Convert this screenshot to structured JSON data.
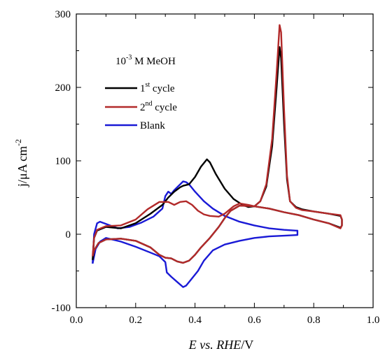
{
  "chart_data": {
    "type": "line",
    "x_axis": {
      "label_parts": [
        "E",
        " vs. ",
        "RHE",
        "/V"
      ],
      "range": [
        0.0,
        1.0
      ],
      "ticks": [
        0.0,
        0.2,
        0.4,
        0.6,
        0.8,
        1.0
      ],
      "tick_labels": [
        "0.0",
        "0.2",
        "0.4",
        "0.6",
        "0.8",
        "1.0"
      ]
    },
    "y_axis": {
      "label_main": "j/μA cm",
      "label_sup": "-2",
      "range": [
        -100,
        300
      ],
      "ticks": [
        -100,
        0,
        100,
        200,
        300
      ],
      "tick_labels": [
        "-100",
        "0",
        "100",
        "200",
        "300"
      ]
    },
    "annotation": {
      "base": "10",
      "sup": "-3",
      "rest": " M  MeOH"
    },
    "legend": [
      {
        "series": "cycle1",
        "base": "1",
        "sup": "st",
        "rest": " cycle"
      },
      {
        "series": "cycle2",
        "base": "2",
        "sup": "nd",
        "rest": " cycle"
      },
      {
        "series": "blank",
        "base": "Blank",
        "sup": "",
        "rest": ""
      }
    ],
    "series": [
      {
        "key": "cycle1",
        "color": "#000000",
        "points": [
          [
            0.055,
            -35
          ],
          [
            0.06,
            -5
          ],
          [
            0.07,
            5
          ],
          [
            0.1,
            10
          ],
          [
            0.15,
            8
          ],
          [
            0.2,
            15
          ],
          [
            0.25,
            28
          ],
          [
            0.29,
            40
          ],
          [
            0.31,
            50
          ],
          [
            0.33,
            58
          ],
          [
            0.35,
            64
          ],
          [
            0.36,
            66
          ],
          [
            0.38,
            68
          ],
          [
            0.4,
            78
          ],
          [
            0.42,
            92
          ],
          [
            0.44,
            102
          ],
          [
            0.45,
            98
          ],
          [
            0.47,
            82
          ],
          [
            0.5,
            62
          ],
          [
            0.53,
            48
          ],
          [
            0.56,
            40
          ],
          [
            0.58,
            37
          ],
          [
            0.6,
            38
          ],
          [
            0.62,
            45
          ],
          [
            0.64,
            65
          ],
          [
            0.66,
            120
          ],
          [
            0.675,
            200
          ],
          [
            0.685,
            255
          ],
          [
            0.69,
            240
          ],
          [
            0.7,
            150
          ],
          [
            0.71,
            75
          ],
          [
            0.72,
            45
          ],
          [
            0.74,
            37
          ],
          [
            0.76,
            34
          ],
          [
            0.8,
            31
          ],
          [
            0.85,
            28
          ],
          [
            0.89,
            25
          ],
          [
            0.895,
            20
          ],
          [
            0.895,
            12
          ],
          [
            0.89,
            9
          ],
          [
            0.85,
            15
          ],
          [
            0.8,
            20
          ],
          [
            0.75,
            26
          ],
          [
            0.7,
            30
          ],
          [
            0.65,
            35
          ],
          [
            0.6,
            38
          ],
          [
            0.55,
            39
          ],
          [
            0.52,
            32
          ],
          [
            0.5,
            22
          ],
          [
            0.48,
            10
          ],
          [
            0.45,
            -5
          ],
          [
            0.42,
            -18
          ],
          [
            0.4,
            -28
          ],
          [
            0.38,
            -36
          ],
          [
            0.36,
            -39
          ],
          [
            0.34,
            -37
          ],
          [
            0.32,
            -33
          ],
          [
            0.3,
            -32
          ],
          [
            0.28,
            -28
          ],
          [
            0.25,
            -18
          ],
          [
            0.2,
            -9
          ],
          [
            0.15,
            -6
          ],
          [
            0.1,
            -7
          ],
          [
            0.075,
            -12
          ],
          [
            0.06,
            -22
          ],
          [
            0.055,
            -35
          ]
        ]
      },
      {
        "key": "cycle2",
        "color": "#b22a2a",
        "points": [
          [
            0.055,
            -30
          ],
          [
            0.06,
            -5
          ],
          [
            0.07,
            6
          ],
          [
            0.1,
            11
          ],
          [
            0.15,
            12
          ],
          [
            0.2,
            20
          ],
          [
            0.24,
            34
          ],
          [
            0.28,
            44
          ],
          [
            0.31,
            44
          ],
          [
            0.33,
            40
          ],
          [
            0.35,
            44
          ],
          [
            0.37,
            45
          ],
          [
            0.39,
            40
          ],
          [
            0.41,
            32
          ],
          [
            0.43,
            27
          ],
          [
            0.45,
            25
          ],
          [
            0.48,
            24
          ],
          [
            0.5,
            28
          ],
          [
            0.53,
            38
          ],
          [
            0.55,
            42
          ],
          [
            0.58,
            40
          ],
          [
            0.6,
            38
          ],
          [
            0.62,
            45
          ],
          [
            0.64,
            68
          ],
          [
            0.66,
            130
          ],
          [
            0.675,
            220
          ],
          [
            0.685,
            285
          ],
          [
            0.69,
            275
          ],
          [
            0.7,
            170
          ],
          [
            0.71,
            80
          ],
          [
            0.72,
            45
          ],
          [
            0.74,
            36
          ],
          [
            0.76,
            33
          ],
          [
            0.8,
            31
          ],
          [
            0.85,
            28
          ],
          [
            0.89,
            26
          ],
          [
            0.895,
            20
          ],
          [
            0.895,
            12
          ],
          [
            0.89,
            8
          ],
          [
            0.85,
            15
          ],
          [
            0.8,
            20
          ],
          [
            0.75,
            26
          ],
          [
            0.7,
            30
          ],
          [
            0.65,
            35
          ],
          [
            0.6,
            38
          ],
          [
            0.55,
            39
          ],
          [
            0.52,
            32
          ],
          [
            0.5,
            22
          ],
          [
            0.48,
            10
          ],
          [
            0.45,
            -5
          ],
          [
            0.42,
            -18
          ],
          [
            0.4,
            -28
          ],
          [
            0.38,
            -36
          ],
          [
            0.36,
            -39
          ],
          [
            0.34,
            -37
          ],
          [
            0.32,
            -33
          ],
          [
            0.3,
            -32
          ],
          [
            0.28,
            -28
          ],
          [
            0.25,
            -18
          ],
          [
            0.2,
            -9
          ],
          [
            0.15,
            -6
          ],
          [
            0.1,
            -7
          ],
          [
            0.075,
            -12
          ],
          [
            0.06,
            -22
          ],
          [
            0.055,
            -30
          ]
        ]
      },
      {
        "key": "blank",
        "color": "#1a1ad6",
        "points": [
          [
            0.055,
            -40
          ],
          [
            0.06,
            0
          ],
          [
            0.07,
            15
          ],
          [
            0.08,
            17
          ],
          [
            0.1,
            14
          ],
          [
            0.14,
            8
          ],
          [
            0.18,
            10
          ],
          [
            0.22,
            16
          ],
          [
            0.26,
            24
          ],
          [
            0.29,
            35
          ],
          [
            0.3,
            52
          ],
          [
            0.31,
            58
          ],
          [
            0.32,
            55
          ],
          [
            0.33,
            60
          ],
          [
            0.35,
            68
          ],
          [
            0.36,
            72
          ],
          [
            0.37,
            71
          ],
          [
            0.38,
            68
          ],
          [
            0.4,
            58
          ],
          [
            0.43,
            45
          ],
          [
            0.46,
            35
          ],
          [
            0.5,
            25
          ],
          [
            0.55,
            17
          ],
          [
            0.6,
            12
          ],
          [
            0.65,
            8
          ],
          [
            0.7,
            6
          ],
          [
            0.74,
            5
          ],
          [
            0.745,
            5
          ],
          [
            0.745,
            -1
          ],
          [
            0.7,
            -2
          ],
          [
            0.65,
            -3
          ],
          [
            0.6,
            -5
          ],
          [
            0.55,
            -9
          ],
          [
            0.5,
            -14
          ],
          [
            0.46,
            -22
          ],
          [
            0.43,
            -36
          ],
          [
            0.41,
            -50
          ],
          [
            0.39,
            -60
          ],
          [
            0.37,
            -70
          ],
          [
            0.36,
            -72
          ],
          [
            0.34,
            -65
          ],
          [
            0.32,
            -58
          ],
          [
            0.305,
            -52
          ],
          [
            0.3,
            -38
          ],
          [
            0.28,
            -30
          ],
          [
            0.25,
            -25
          ],
          [
            0.2,
            -17
          ],
          [
            0.15,
            -10
          ],
          [
            0.1,
            -5
          ],
          [
            0.08,
            -10
          ],
          [
            0.065,
            -20
          ],
          [
            0.055,
            -40
          ]
        ]
      }
    ]
  }
}
